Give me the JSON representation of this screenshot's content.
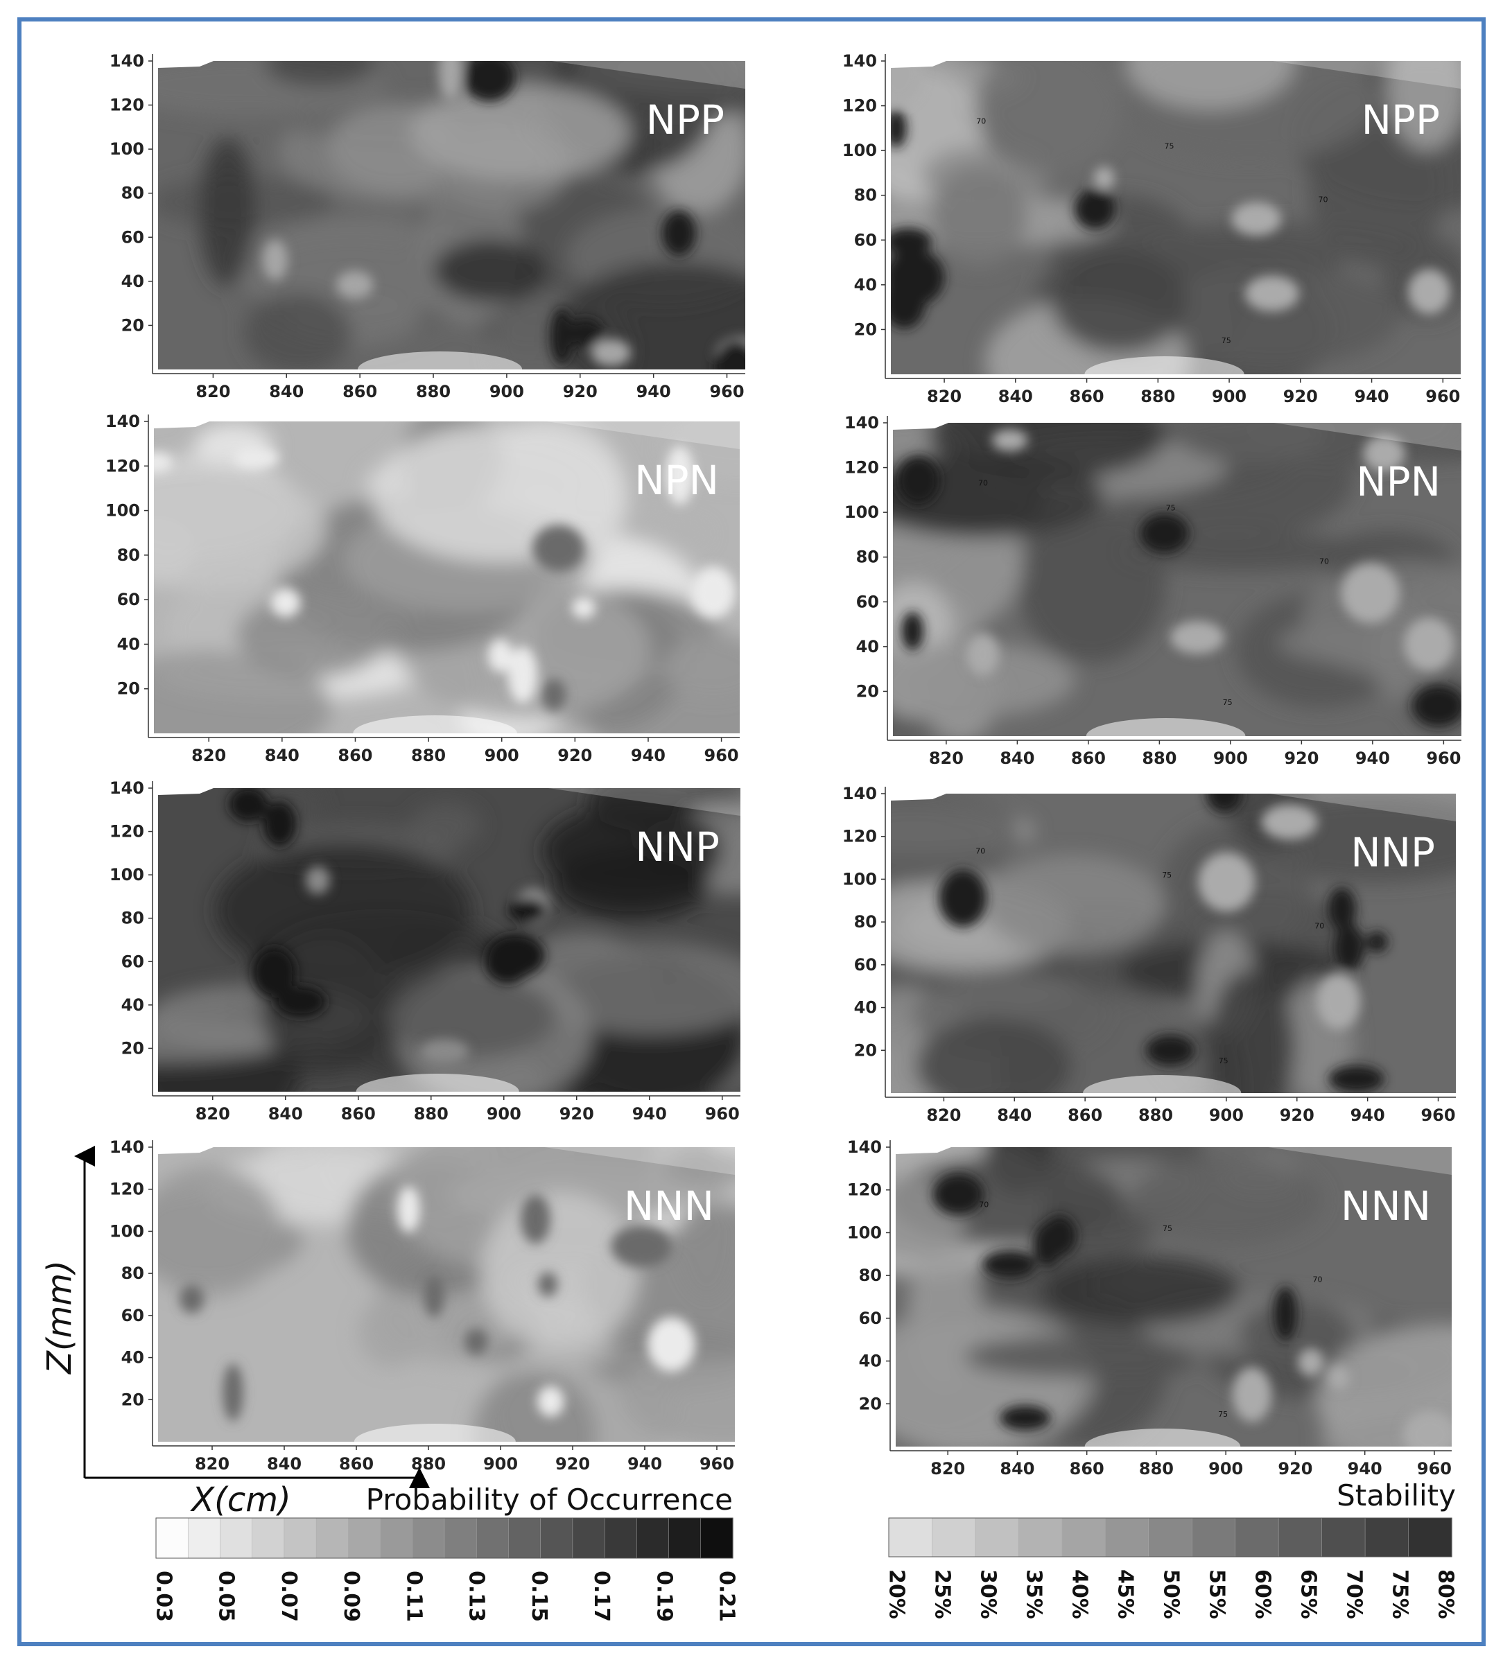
{
  "border_color": "#4d80c0",
  "axis_labels": {
    "x": "X(cm)",
    "z": "Z(mm)"
  },
  "x_ticks": [
    "820",
    "840",
    "860",
    "880",
    "900",
    "920",
    "940",
    "960"
  ],
  "y_ticks": [
    "140",
    "120",
    "100",
    "80",
    "60",
    "40",
    "20"
  ],
  "colorbars": {
    "probability": {
      "title": "Probability of Occurrence",
      "ticks": [
        "0.03",
        "0.05",
        "0.07",
        "0.09",
        "0.11",
        "0.13",
        "0.15",
        "0.17",
        "0.19",
        "0.21"
      ]
    },
    "stability": {
      "title": "Stability",
      "ticks": [
        "20%",
        "25%",
        "30%",
        "35%",
        "40%",
        "45%",
        "50%",
        "55%",
        "60%",
        "65%",
        "70%",
        "75%",
        "80%"
      ]
    }
  },
  "chart_data": [
    {
      "type": "heatmap",
      "panel": "NPP",
      "metric": "Probability of Occurrence",
      "x_ticks": [
        820,
        840,
        860,
        880,
        900,
        920,
        940,
        960
      ],
      "y_ticks": [
        20,
        40,
        60,
        80,
        100,
        120,
        140
      ],
      "xlim": [
        805,
        965
      ],
      "ylim": [
        0,
        140
      ],
      "level": "high"
    },
    {
      "type": "heatmap",
      "panel": "NPN",
      "metric": "Probability of Occurrence",
      "x_ticks": [
        820,
        840,
        860,
        880,
        900,
        920,
        940,
        960
      ],
      "y_ticks": [
        20,
        40,
        60,
        80,
        100,
        120,
        140
      ],
      "xlim": [
        805,
        965
      ],
      "ylim": [
        0,
        140
      ],
      "level": "low"
    },
    {
      "type": "heatmap",
      "panel": "NNP",
      "metric": "Probability of Occurrence",
      "x_ticks": [
        820,
        840,
        860,
        880,
        900,
        920,
        940,
        960
      ],
      "y_ticks": [
        20,
        40,
        60,
        80,
        100,
        120,
        140
      ],
      "xlim": [
        805,
        965
      ],
      "ylim": [
        0,
        140
      ],
      "level": "very high"
    },
    {
      "type": "heatmap",
      "panel": "NNN",
      "metric": "Probability of Occurrence",
      "x_ticks": [
        820,
        840,
        860,
        880,
        900,
        920,
        940,
        960
      ],
      "y_ticks": [
        20,
        40,
        60,
        80,
        100,
        120,
        140
      ],
      "xlim": [
        805,
        965
      ],
      "ylim": [
        0,
        140
      ],
      "level": "low"
    },
    {
      "type": "heatmap",
      "panel": "NPP",
      "metric": "Stability",
      "x_ticks": [
        820,
        840,
        860,
        880,
        900,
        920,
        940,
        960
      ],
      "y_ticks": [
        20,
        40,
        60,
        80,
        100,
        120,
        140
      ],
      "xlim": [
        805,
        965
      ],
      "ylim": [
        0,
        140
      ],
      "contour_labels": [
        "70",
        "75"
      ]
    },
    {
      "type": "heatmap",
      "panel": "NPN",
      "metric": "Stability",
      "x_ticks": [
        820,
        840,
        860,
        880,
        900,
        920,
        940,
        960
      ],
      "y_ticks": [
        20,
        40,
        60,
        80,
        100,
        120,
        140
      ],
      "xlim": [
        805,
        965
      ],
      "ylim": [
        0,
        140
      ],
      "contour_labels": [
        "70",
        "75"
      ]
    },
    {
      "type": "heatmap",
      "panel": "NNP",
      "metric": "Stability",
      "x_ticks": [
        820,
        840,
        860,
        880,
        900,
        920,
        940,
        960
      ],
      "y_ticks": [
        20,
        40,
        60,
        80,
        100,
        120,
        140
      ],
      "xlim": [
        805,
        965
      ],
      "ylim": [
        0,
        140
      ],
      "contour_labels": [
        "70",
        "75"
      ]
    },
    {
      "type": "heatmap",
      "panel": "NNN",
      "metric": "Stability",
      "x_ticks": [
        820,
        840,
        860,
        880,
        900,
        920,
        940,
        960
      ],
      "y_ticks": [
        20,
        40,
        60,
        80,
        100,
        120,
        140
      ],
      "xlim": [
        805,
        965
      ],
      "ylim": [
        0,
        140
      ],
      "contour_labels": [
        "70",
        "75"
      ]
    }
  ]
}
